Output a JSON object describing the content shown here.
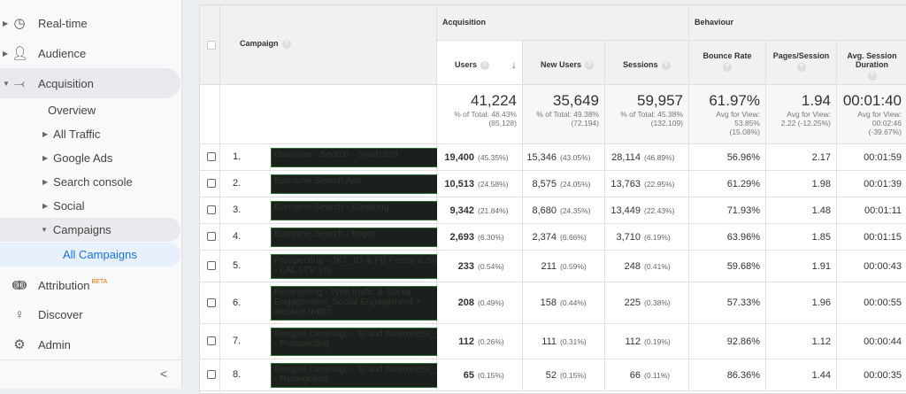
{
  "sidebar": {
    "items": [
      {
        "label": "Real-time",
        "icon": "clock-icon"
      },
      {
        "label": "Audience",
        "icon": "person-icon"
      },
      {
        "label": "Acquisition",
        "icon": "acquisition-icon"
      }
    ],
    "acquisition_sub": [
      "Overview",
      "All Traffic",
      "Google Ads",
      "Search console",
      "Social",
      "Campaigns"
    ],
    "campaigns_sub": "All Campaigns",
    "bottom": [
      {
        "label": "Attribution",
        "badge": "BETA",
        "icon": "attribution-icon"
      },
      {
        "label": "Discover",
        "icon": "lightbulb-icon"
      },
      {
        "label": "Admin",
        "icon": "gear-icon"
      }
    ],
    "collapse": "<"
  },
  "table": {
    "groups": {
      "acquisition": "Acquisition",
      "behaviour": "Behaviour"
    },
    "columns": {
      "campaign": "Campaign",
      "users": "Users",
      "new_users": "New Users",
      "sessions": "Sessions",
      "bounce": "Bounce Rate",
      "pages": "Pages/Session",
      "duration": "Avg. Session Duration"
    },
    "totals": {
      "users": {
        "value": "41,224",
        "sub1": "% of Total: 48.43%",
        "sub2": "(85,128)"
      },
      "new_users": {
        "value": "35,649",
        "sub1": "% of Total: 49.38%",
        "sub2": "(72,194)"
      },
      "sessions": {
        "value": "59,957",
        "sub1": "% of Total: 45.38%",
        "sub2": "(132,109)"
      },
      "bounce": {
        "value": "61.97%",
        "sub1": "Avg for View:",
        "sub2": "53.85%",
        "sub3": "(15.08%)"
      },
      "pages": {
        "value": "1.94",
        "sub1": "Avg for View:",
        "sub2": "2.22 (-12.25%)"
      },
      "duration": {
        "value": "00:01:40",
        "sub1": "Avg for View:",
        "sub2": "00:02:46",
        "sub3": "(-39.67%)"
      }
    },
    "rows": [
      {
        "idx": "1.",
        "campaign": "Bumame - Search - Swab test",
        "users": "19,400",
        "users_pct": "(45.35%)",
        "new_users": "15,346",
        "new_pct": "(43.05%)",
        "sessions": "28,114",
        "sess_pct": "(46.89%)",
        "bounce": "56.96%",
        "pages": "2.17",
        "duration": "00:01:59"
      },
      {
        "idx": "2.",
        "campaign": "Bumame Search Ads",
        "users": "10,513",
        "users_pct": "(24.58%)",
        "new_users": "8,575",
        "new_pct": "(24.05%)",
        "sessions": "13,763",
        "sess_pct": "(22.95%)",
        "bounce": "61.29%",
        "pages": "1.98",
        "duration": "00:01:39"
      },
      {
        "idx": "3.",
        "campaign": "Bumame Search - Bandung",
        "users": "9,342",
        "users_pct": "(21.84%)",
        "new_users": "8,680",
        "new_pct": "(24.35%)",
        "sessions": "13,449",
        "sess_pct": "(22.43%)",
        "bounce": "71.93%",
        "pages": "1.48",
        "duration": "00:01:11"
      },
      {
        "idx": "4.",
        "campaign": "Bumame Search - bogor",
        "users": "2,693",
        "users_pct": "(6.30%)",
        "new_users": "2,374",
        "new_pct": "(6.66%)",
        "sessions": "3,710",
        "sess_pct": "(6.19%)",
        "bounce": "63.96%",
        "pages": "1.85",
        "duration": "00:01:15"
      },
      {
        "idx": "5.",
        "campaign": "Prospecting - JKT_IG & FB Feeds & Story - LAL LTV 1%",
        "users": "233",
        "users_pct": "(0.54%)",
        "new_users": "211",
        "new_pct": "(0.59%)",
        "sessions": "248",
        "sess_pct": "(0.41%)",
        "bounce": "59.68%",
        "pages": "1.91",
        "duration": "00:00:43"
      },
      {
        "idx": "6.",
        "campaign": "Retargeting - Web traffic & Social Engagement_Social Engagement + website traffic",
        "users": "208",
        "users_pct": "(0.49%)",
        "new_users": "158",
        "new_pct": "(0.44%)",
        "sessions": "225",
        "sess_pct": "(0.38%)",
        "bounce": "57.33%",
        "pages": "1.96",
        "duration": "00:00:55"
      },
      {
        "idx": "7.",
        "campaign": "Reagen campaign - Brand Awareness_CA - Prospecting",
        "users": "112",
        "users_pct": "(0.26%)",
        "new_users": "111",
        "new_pct": "(0.31%)",
        "sessions": "112",
        "sess_pct": "(0.19%)",
        "bounce": "92.86%",
        "pages": "1.12",
        "duration": "00:00:44"
      },
      {
        "idx": "8.",
        "campaign": "Reagen campaign - Brand Awareness_CA - Retargeting",
        "users": "65",
        "users_pct": "(0.15%)",
        "new_users": "52",
        "new_pct": "(0.15%)",
        "sessions": "66",
        "sess_pct": "(0.11%)",
        "bounce": "86.36%",
        "pages": "1.44",
        "duration": "00:00:35"
      }
    ]
  }
}
